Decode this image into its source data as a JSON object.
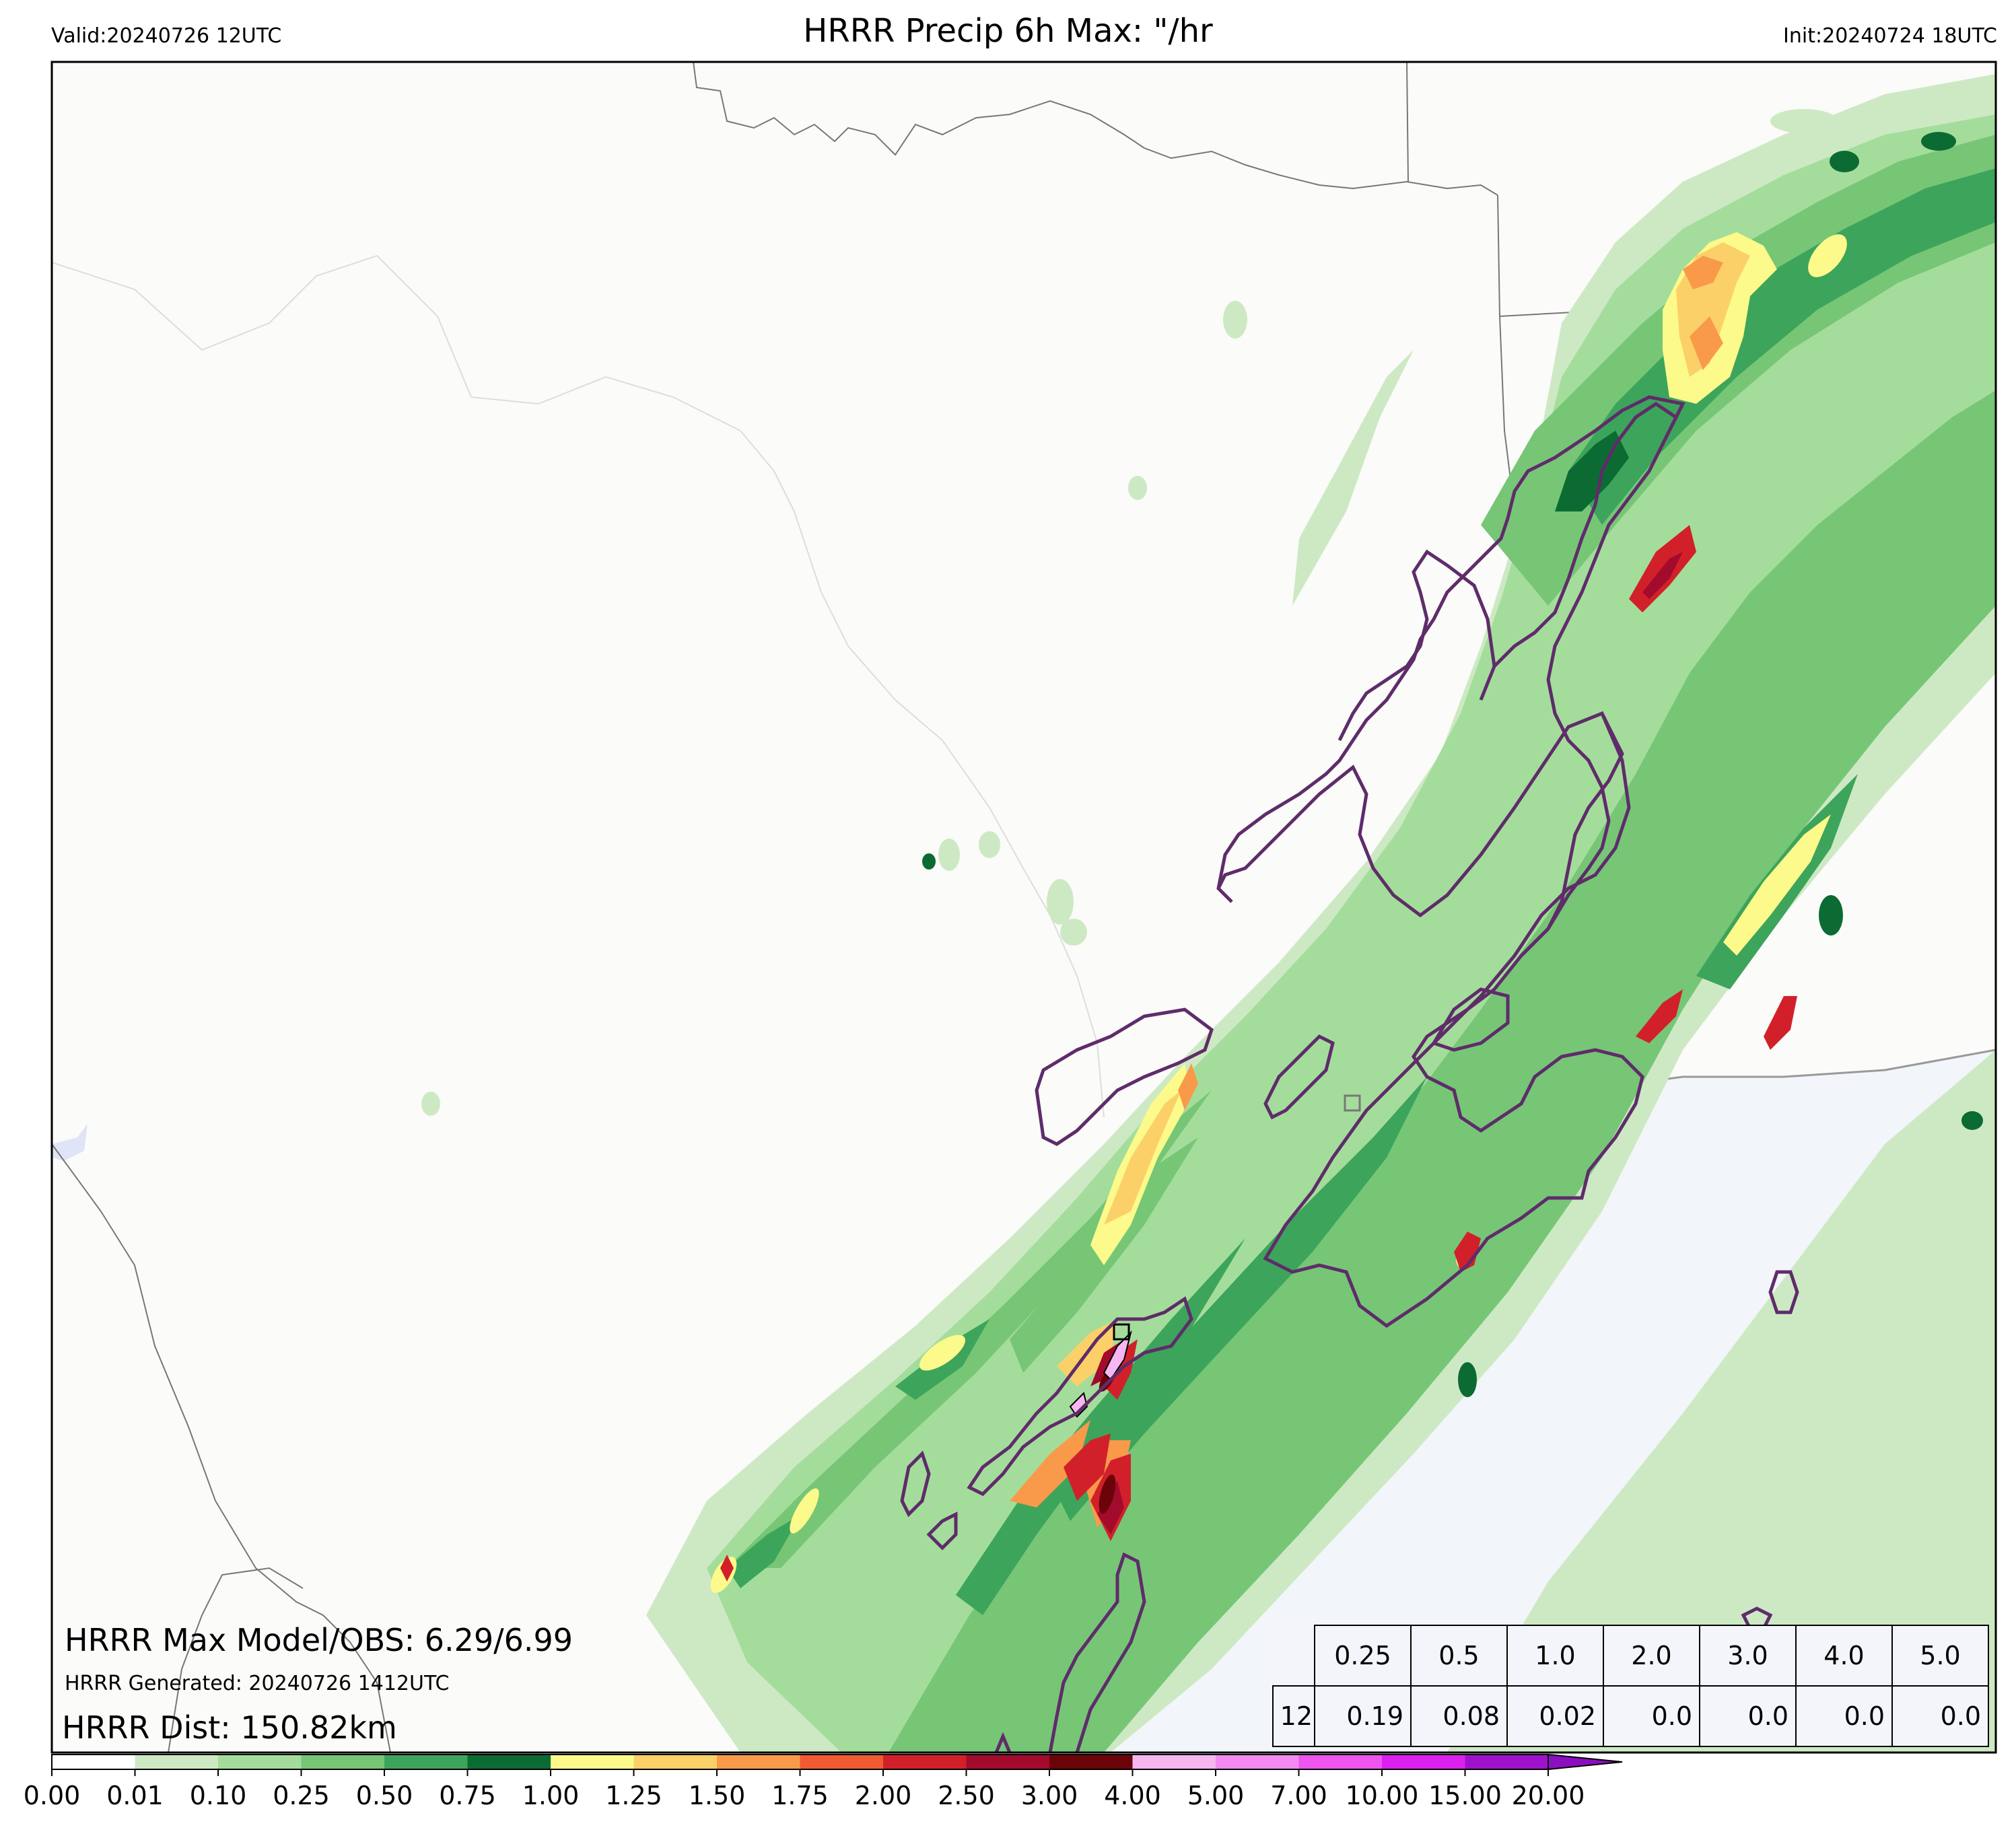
{
  "header": {
    "title": "HRRR Precip 6h Max: \"/hr",
    "valid": "Valid:20240726 12UTC",
    "init": "Init:20240724 18UTC"
  },
  "overlay": {
    "max_model_obs": "HRRR Max Model/OBS: 6.29/6.99",
    "generated": "HRRR Generated: 20240726 1412UTC",
    "distance": "HRRR Dist: 150.82km"
  },
  "stats_table": {
    "thresholds": [
      "0.25",
      "0.5",
      "1.0",
      "2.0",
      "3.0",
      "4.0",
      "5.0"
    ],
    "row_label": "12",
    "values": [
      "0.19",
      "0.08",
      "0.02",
      "0.0",
      "0.0",
      "0.0",
      "0.0"
    ]
  },
  "colorbar": {
    "ticks": [
      "0.00",
      "0.01",
      "0.10",
      "0.25",
      "0.50",
      "0.75",
      "1.00",
      "1.25",
      "1.50",
      "1.75",
      "2.00",
      "2.50",
      "3.00",
      "4.00",
      "5.00",
      "7.00",
      "10.00",
      "15.00",
      "20.00"
    ],
    "colors": [
      "#ffffff",
      "#cde9c4",
      "#a4dd9b",
      "#76c676",
      "#3da45b",
      "#0b6b32",
      "#fcfa8a",
      "#fcd068",
      "#f99a4b",
      "#f25b31",
      "#d2202b",
      "#a30b2c",
      "#6b0408",
      "#f7b6f0",
      "#f28af1",
      "#ee55ee",
      "#dc21ee",
      "#9f12cb"
    ]
  },
  "map_colors": {
    "land": "#fbfbf9",
    "water": "#f2f5fa",
    "contour": "#5f2c6a",
    "border": "#777777"
  }
}
